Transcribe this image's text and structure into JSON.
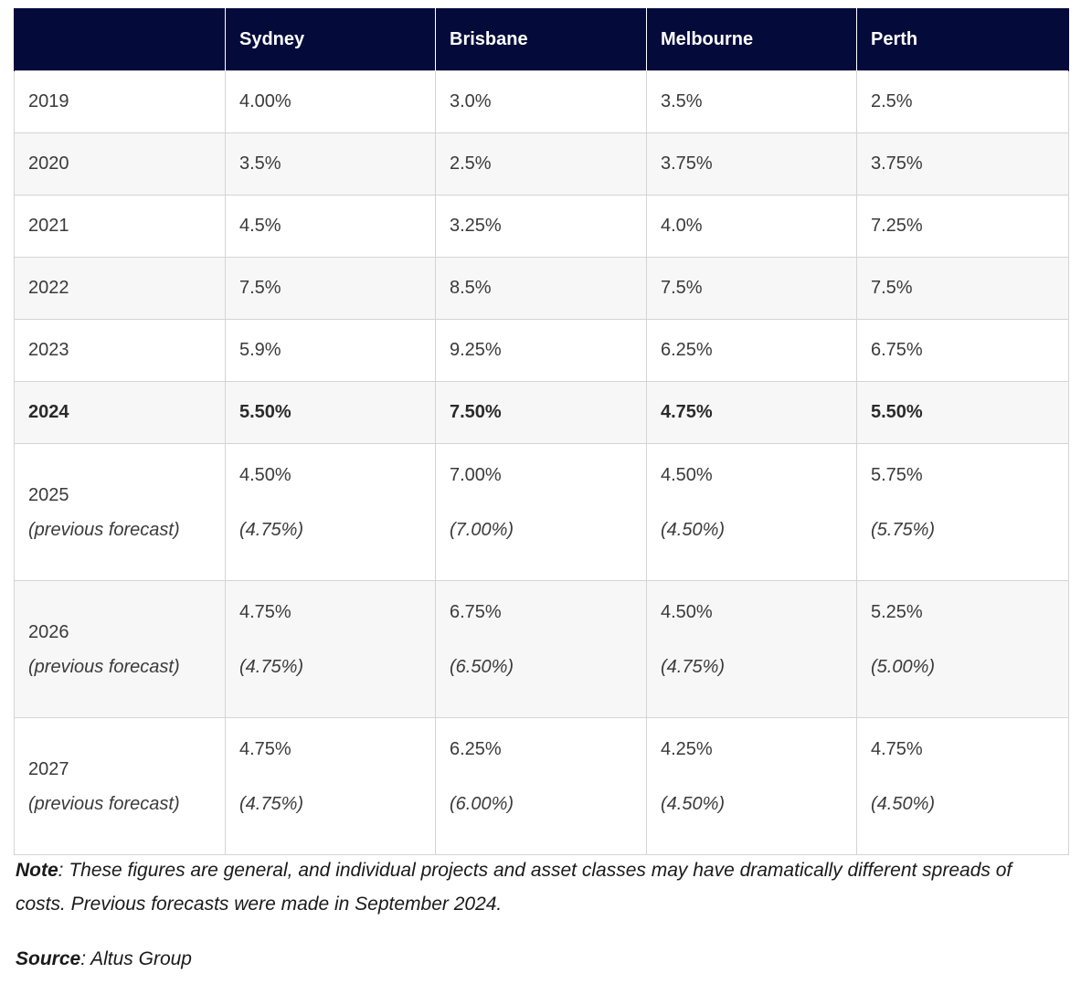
{
  "table": {
    "headers": [
      "",
      "Sydney",
      "Brisbane",
      "Melbourne",
      "Perth"
    ],
    "rows": [
      {
        "year": "2019",
        "values": [
          "4.00%",
          "3.0%",
          "3.5%",
          "2.5%"
        ]
      },
      {
        "year": "2020",
        "values": [
          "3.5%",
          "2.5%",
          "3.75%",
          "3.75%"
        ]
      },
      {
        "year": "2021",
        "values": [
          "4.5%",
          "3.25%",
          "4.0%",
          "7.25%"
        ]
      },
      {
        "year": "2022",
        "values": [
          "7.5%",
          "8.5%",
          "7.5%",
          "7.5%"
        ]
      },
      {
        "year": "2023",
        "values": [
          "5.9%",
          "9.25%",
          "6.25%",
          "6.75%"
        ]
      },
      {
        "year": "2024",
        "values": [
          "5.50%",
          "7.50%",
          "4.75%",
          "5.50%"
        ]
      }
    ],
    "forecast_rows": [
      {
        "year": "2025",
        "sub": "(previous forecast)",
        "values": [
          "4.50%",
          "7.00%",
          "4.50%",
          "5.75%"
        ],
        "previous": [
          "(4.75%)",
          "(7.00%)",
          "(4.50%)",
          "(5.75%)"
        ]
      },
      {
        "year": "2026",
        "sub": "(previous forecast)",
        "values": [
          "4.75%",
          "6.75%",
          "4.50%",
          "5.25%"
        ],
        "previous": [
          "(4.75%)",
          "(6.50%)",
          "(4.75%)",
          "(5.00%)"
        ]
      },
      {
        "year": "2027",
        "sub": "(previous forecast)",
        "values": [
          "4.75%",
          "6.25%",
          "4.25%",
          "4.75%"
        ],
        "previous": [
          "(4.75%)",
          "(6.00%)",
          "(4.50%)",
          "(4.50%)"
        ]
      }
    ]
  },
  "note": {
    "label": "Note",
    "text": ": These figures are general, and individual projects and asset classes may have dramatically different spreads of costs. Previous forecasts were made in September 2024."
  },
  "source": {
    "label": "Source",
    "text": ": Altus Group"
  },
  "colors": {
    "header_bg": "#040a3a",
    "header_text": "#ffffff",
    "row_alt_bg": "#f7f7f7",
    "border": "#d4d4d4"
  }
}
